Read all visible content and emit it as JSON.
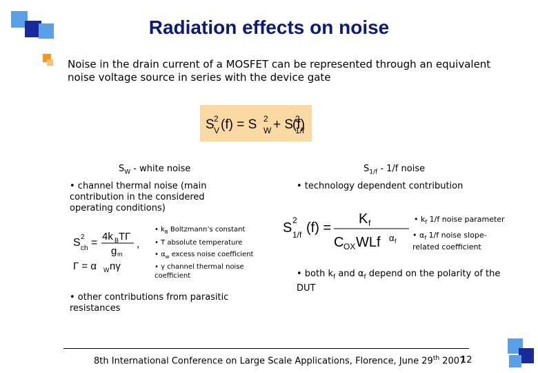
{
  "slide": {
    "title": "Radiation effects on noise",
    "intro": "Noise in the drain current of a MOSFET can be represented through an equivalent noise voltage source in series with the device gate",
    "main_formula": "S²V(f) = S²W + S²1/f(f)",
    "left": {
      "heading_main": "S",
      "heading_sub": "W",
      "heading_rest": " - white noise",
      "bullet1": "• channel thermal noise (main contribution in the considered operating conditions)",
      "formula_sch": "S²ch = 4kBTΓ / gm",
      "formula_gamma": "Γ = αW n γ",
      "params": [
        {
          "bullet": "• ",
          "sym": "k",
          "sub": "B",
          "text": " Boltzmann’s constant"
        },
        {
          "bullet": "• ",
          "sym": "T",
          "sub": "",
          "text": " absolute temperature"
        },
        {
          "bullet": "• ",
          "sym": "α",
          "sub": "w",
          "text": " excess noise coefficient"
        },
        {
          "bullet": "• ",
          "sym": "γ",
          "sub": "",
          "text": " channel thermal noise coefficient"
        }
      ],
      "bullet2": "• other contributions from parasitic resistances"
    },
    "right": {
      "heading_main": "S",
      "heading_sub": "1/f",
      "heading_rest": " - 1/f noise",
      "bullet1": "• technology dependent contribution",
      "formula": "S²1/f(f) = Kf / (COX W L f^αf)",
      "param1_pre": "• k",
      "param1_sub": "f",
      "param1_text": " 1/f noise parameter",
      "param2_pre": "• α",
      "param2_sub": "f",
      "param2_text": " 1/f noise slope-related coefficient",
      "bullet2_pre": "• both k",
      "bullet2_sub1": "f",
      "bullet2_mid": " and α",
      "bullet2_sub2": "f",
      "bullet2_rest": " depend on the polarity of the DUT"
    },
    "footer": {
      "text_pre": "8th International Conference on Large Scale Applications, Florence, June 29",
      "text_sup": "th",
      "text_post": " 2007",
      "page": "12"
    },
    "colors": {
      "title": "#0a1a7a",
      "dark_blue": "#1a2a9c",
      "light_blue": "#5aa0e6",
      "orange": "#f39a1e",
      "peach": "#fad9a2"
    }
  }
}
